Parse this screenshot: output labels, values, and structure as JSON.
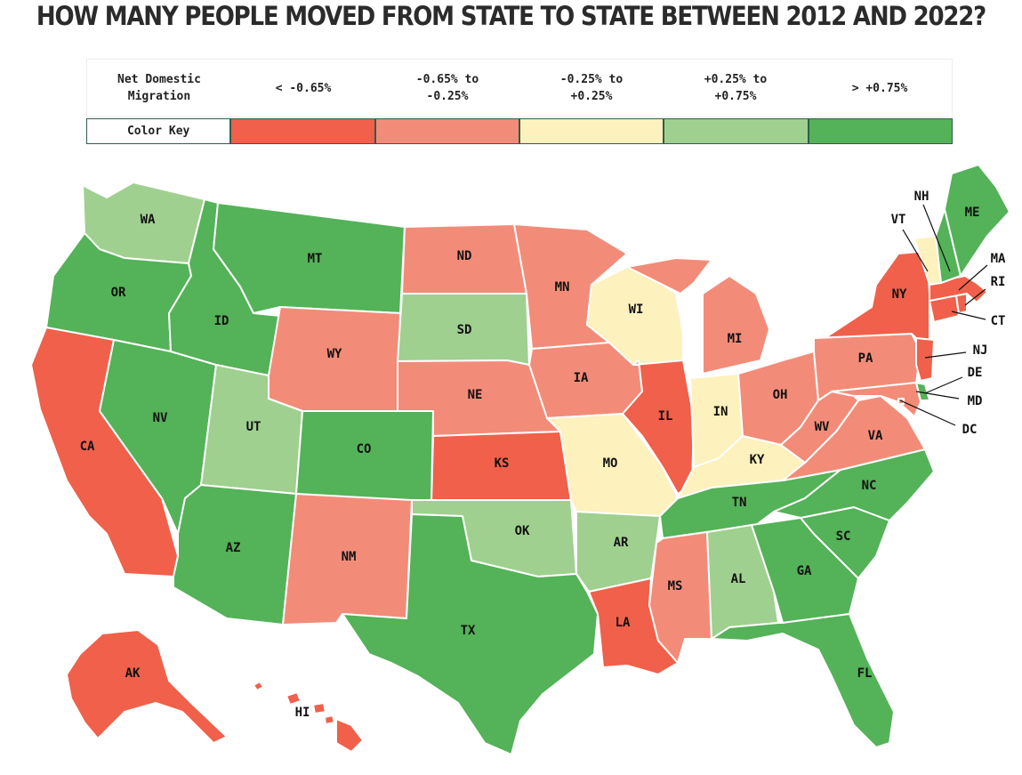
{
  "title": "HOW MANY PEOPLE MOVED FROM STATE TO STATE BETWEEN 2012 AND 2022?",
  "legend": {
    "header": "Net Domestic\nMigration",
    "key_label": "Color Key",
    "ranges": [
      {
        "label": "< -0.65%",
        "color": "#f0604a"
      },
      {
        "label": "-0.65% to\n-0.25%",
        "color": "#f28c78"
      },
      {
        "label": "-0.25% to\n+0.25%",
        "color": "#fdf1bd"
      },
      {
        "label": "+0.25% to\n+0.75%",
        "color": "#9fd08f"
      },
      {
        "label": "> +0.75%",
        "color": "#54b258"
      }
    ]
  },
  "states": {
    "WA": 3,
    "OR": 4,
    "CA": 0,
    "NV": 4,
    "ID": 4,
    "MT": 4,
    "WY": 1,
    "UT": 3,
    "AZ": 4,
    "CO": 4,
    "NM": 1,
    "ND": 1,
    "SD": 3,
    "NE": 1,
    "KS": 0,
    "OK": 3,
    "TX": 4,
    "MN": 1,
    "IA": 1,
    "MO": 2,
    "AR": 3,
    "LA": 0,
    "WI": 2,
    "IL": 0,
    "MI": 1,
    "IN": 2,
    "OH": 1,
    "KY": 2,
    "TN": 4,
    "MS": 1,
    "AL": 3,
    "GA": 4,
    "FL": 4,
    "SC": 4,
    "NC": 4,
    "VA": 1,
    "WV": 1,
    "PA": 1,
    "NY": 0,
    "VT": 2,
    "NH": 4,
    "ME": 4,
    "MA": 0,
    "RI": 0,
    "CT": 0,
    "NJ": 0,
    "DE": 4,
    "MD": 1,
    "DC": 1,
    "AK": 0,
    "HI": 0
  },
  "labels": {
    "WA": "WA",
    "OR": "OR",
    "CA": "CA",
    "NV": "NV",
    "ID": "ID",
    "MT": "MT",
    "WY": "WY",
    "UT": "UT",
    "AZ": "AZ",
    "CO": "CO",
    "NM": "NM",
    "ND": "ND",
    "SD": "SD",
    "NE": "NE",
    "KS": "KS",
    "OK": "OK",
    "TX": "TX",
    "MN": "MN",
    "IA": "IA",
    "MO": "MO",
    "AR": "AR",
    "LA": "LA",
    "WI": "WI",
    "IL": "IL",
    "MI": "MI",
    "IN": "IN",
    "OH": "OH",
    "KY": "KY",
    "TN": "TN",
    "MS": "MS",
    "AL": "AL",
    "GA": "GA",
    "FL": "FL",
    "SC": "SC",
    "NC": "NC",
    "VA": "VA",
    "WV": "WV",
    "PA": "PA",
    "NY": "NY",
    "VT": "VT",
    "NH": "NH",
    "ME": "ME",
    "MA": "MA",
    "RI": "RI",
    "CT": "CT",
    "NJ": "NJ",
    "DE": "DE",
    "MD": "MD",
    "DC": "DC",
    "AK": "AK",
    "HI": "HI"
  }
}
